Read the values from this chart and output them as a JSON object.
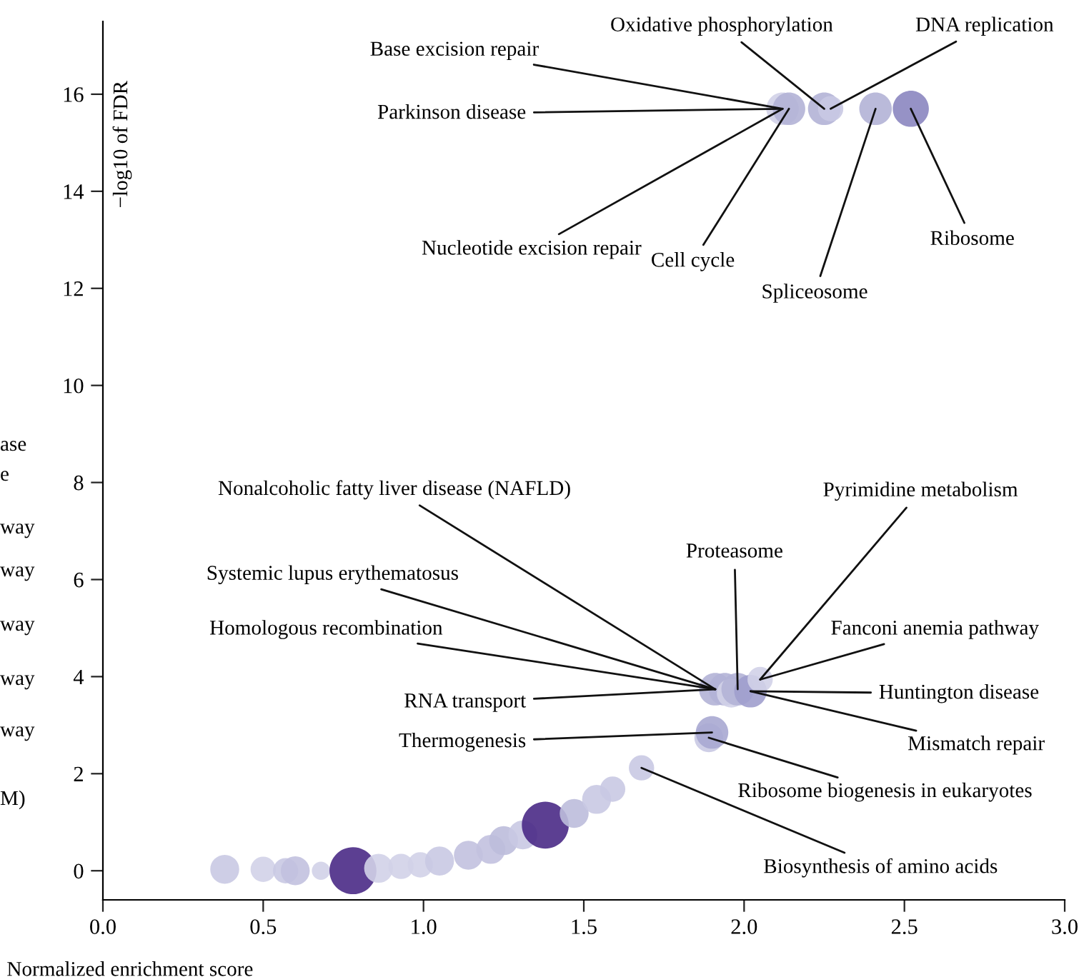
{
  "chart_data": {
    "type": "bubble",
    "xlabel": "Normalized enrichment score",
    "ylabel": "−log10 of FDR",
    "x": [
      0.38,
      0.5,
      0.57,
      0.6,
      0.68,
      0.78,
      0.86,
      0.93,
      0.99,
      1.05,
      1.14,
      1.21,
      1.25,
      1.31,
      1.38,
      1.47,
      1.54,
      1.59,
      1.68,
      1.89,
      1.9,
      1.91,
      1.94,
      1.96,
      1.98,
      2.02,
      2.05,
      2.12,
      2.14,
      2.25,
      2.27,
      2.41,
      2.52
    ],
    "values": [
      0.03,
      0.03,
      0,
      0,
      0,
      0,
      0.05,
      0.09,
      0.12,
      0.2,
      0.32,
      0.44,
      0.62,
      0.74,
      0.94,
      1.18,
      1.47,
      1.68,
      2.12,
      2.74,
      2.85,
      3.74,
      3.74,
      3.66,
      3.74,
      3.7,
      3.94,
      15.7,
      15.7,
      15.7,
      15.7,
      15.7,
      15.7
    ],
    "sizes": [
      0.38,
      0.29,
      0.29,
      0.38,
      0.15,
      1,
      0.38,
      0.29,
      0.29,
      0.38,
      0.38,
      0.38,
      0.38,
      0.38,
      1,
      0.38,
      0.38,
      0.29,
      0.29,
      0.38,
      0.48,
      0.48,
      0.48,
      0.38,
      0.48,
      0.48,
      0.29,
      0.48,
      0.48,
      0.48,
      0.29,
      0.48,
      0.59
    ],
    "colors": [
      "#c9c9e3",
      "#d2d2e8",
      "#c9c9e3",
      "#c2c1df",
      "#d2d2e8",
      "#4a2a86",
      "#d2d2e8",
      "#d2d2e8",
      "#d2d2e8",
      "#c9c9e3",
      "#c2c1df",
      "#c2c1df",
      "#bdbcdc",
      "#c9c9e3",
      "#4a2a86",
      "#bdbcdc",
      "#c9c9e3",
      "#c9c9e3",
      "#c9c9e3",
      "#c9c9e3",
      "#a9a8d2",
      "#b3b2d6",
      "#b3b2d6",
      "#d2d2e8",
      "#b3b2d6",
      "#a09fcd",
      "#d2d2e8",
      "#d2d2e8",
      "#b3b2d6",
      "#b3b2d6",
      "#c9c9e3",
      "#b3b2d6",
      "#8b86c0"
    ],
    "xlim": [
      0,
      3.0
    ],
    "ylim": [
      -0.6,
      17.5
    ],
    "xticks": [
      {
        "value": 0,
        "label": "0.0"
      },
      {
        "value": 0.5,
        "label": "0.5"
      },
      {
        "value": 1,
        "label": "1.0"
      },
      {
        "value": 1.5,
        "label": "1.5"
      },
      {
        "value": 2,
        "label": "2.0"
      },
      {
        "value": 2.5,
        "label": "2.5"
      },
      {
        "value": 3,
        "label": "3.0"
      }
    ],
    "yticks": [
      0,
      2,
      4,
      6,
      8,
      10,
      12,
      14,
      16
    ],
    "grid": false,
    "legend": false,
    "annotations": [
      {
        "text": "Base excision repair",
        "x": 2.12,
        "y": 15.7
      },
      {
        "text": "Parkinson disease",
        "x": 2.12,
        "y": 15.7
      },
      {
        "text": "Nucleotide excision repair",
        "x": 2.12,
        "y": 15.7
      },
      {
        "text": "Cell cycle",
        "x": 2.14,
        "y": 15.7
      },
      {
        "text": "Oxidative phosphorylation",
        "x": 2.25,
        "y": 15.7
      },
      {
        "text": "DNA replication",
        "x": 2.27,
        "y": 15.7
      },
      {
        "text": "Spliceosome",
        "x": 2.41,
        "y": 15.7
      },
      {
        "text": "Ribosome",
        "x": 2.52,
        "y": 15.7
      },
      {
        "text": "Nonalcoholic fatty liver disease (NAFLD)",
        "x": 1.91,
        "y": 3.74
      },
      {
        "text": "Systemic lupus erythematosus",
        "x": 1.91,
        "y": 3.74
      },
      {
        "text": "Homologous recombination",
        "x": 1.91,
        "y": 3.74
      },
      {
        "text": "RNA transport",
        "x": 1.91,
        "y": 3.74
      },
      {
        "text": "Thermogenesis",
        "x": 1.9,
        "y": 2.85
      },
      {
        "text": "Proteasome",
        "x": 1.98,
        "y": 3.74
      },
      {
        "text": "Pyrimidine metabolism",
        "x": 2.05,
        "y": 3.94
      },
      {
        "text": "Fanconi anemia pathway",
        "x": 2.05,
        "y": 3.94
      },
      {
        "text": "Huntington disease",
        "x": 2.02,
        "y": 3.7
      },
      {
        "text": "Mismatch repair",
        "x": 2.02,
        "y": 3.7
      },
      {
        "text": "Ribosome biogenesis in eukaryotes",
        "x": 1.89,
        "y": 2.74
      },
      {
        "text": "Biosynthesis of amino acids",
        "x": 1.68,
        "y": 2.12
      },
      "ase",
      "e",
      "way",
      "way",
      "way",
      "way",
      "way",
      "M)"
    ]
  }
}
